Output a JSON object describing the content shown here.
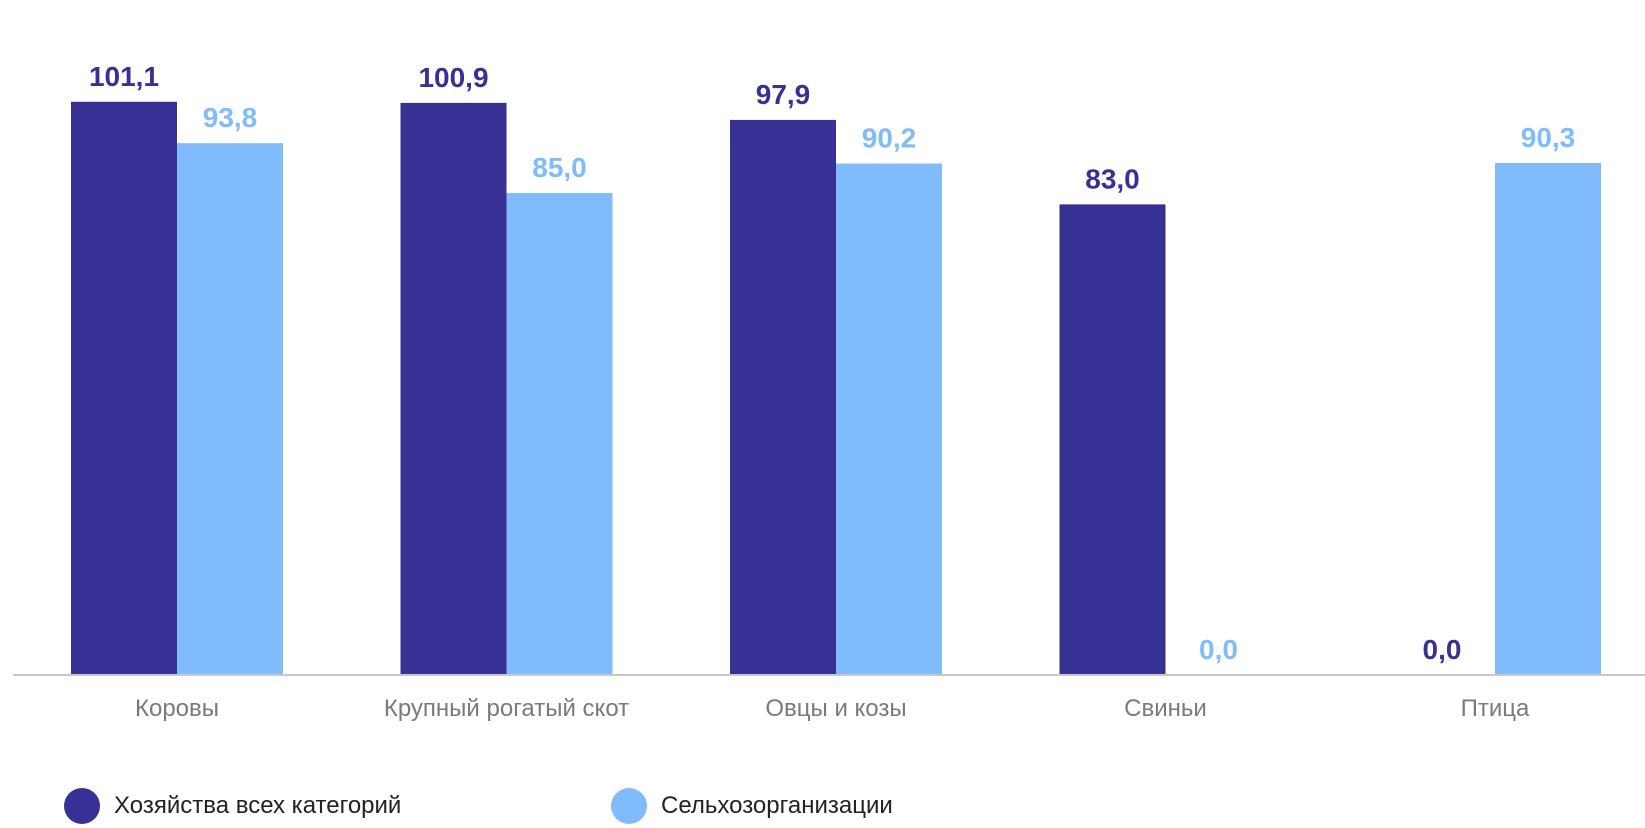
{
  "chart_data": {
    "type": "bar",
    "categories": [
      "Коровы",
      "Крупный рогатый скот",
      "Овцы и козы",
      "Свиньи",
      "Птица"
    ],
    "series": [
      {
        "name": "Хозяйства всех категорий",
        "color": "#373095",
        "values": [
          101.1,
          100.9,
          97.9,
          83.0,
          0.0
        ],
        "labels": [
          "101,1",
          "100,9",
          "97,9",
          "83,0",
          "0,0"
        ]
      },
      {
        "name": "Сельхозорганизации",
        "color": "#80BBFB",
        "values": [
          93.8,
          85.0,
          90.2,
          0.0,
          90.3
        ],
        "labels": [
          "93,8",
          "85,0",
          "90,2",
          "0,0",
          "90,3"
        ]
      }
    ],
    "ylim": [
      0,
      110
    ],
    "grid": false,
    "legend_position": "bottom-left",
    "axis_color": "#c8c8c8"
  }
}
